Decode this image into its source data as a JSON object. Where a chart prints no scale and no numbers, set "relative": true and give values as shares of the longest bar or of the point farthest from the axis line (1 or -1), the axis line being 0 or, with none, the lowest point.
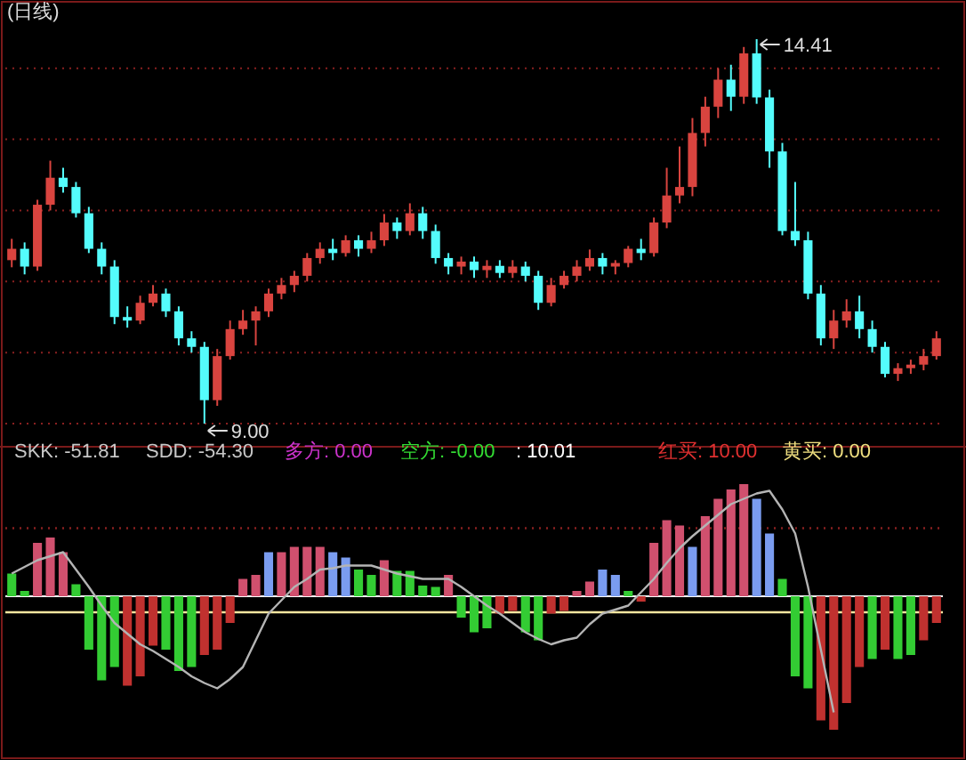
{
  "chart_data": [
    {
      "type": "candlestick",
      "title": "(日线)",
      "categories": [
        null,
        null,
        null,
        null,
        null,
        null,
        null,
        null,
        null,
        null,
        null,
        null,
        null,
        null,
        null,
        null,
        null,
        null,
        null,
        null,
        null,
        null,
        null,
        null,
        null,
        null,
        null,
        null,
        null,
        null,
        null,
        null,
        null,
        null,
        null,
        null,
        null,
        null,
        null,
        null,
        null,
        null,
        null,
        null,
        null,
        null,
        null,
        null,
        null,
        null,
        null,
        null,
        null,
        null,
        null,
        null,
        null,
        null,
        null,
        null,
        null,
        null,
        null,
        null,
        null,
        null,
        null,
        null,
        null,
        null,
        null,
        null,
        null
      ],
      "ohlc": [
        [
          11.3,
          11.6,
          11.2,
          11.46
        ],
        [
          11.46,
          11.55,
          11.1,
          11.21
        ],
        [
          11.21,
          12.15,
          11.15,
          12.08
        ],
        [
          12.08,
          12.7,
          12.0,
          12.46
        ],
        [
          12.46,
          12.6,
          12.25,
          12.33
        ],
        [
          12.33,
          12.4,
          11.9,
          11.96
        ],
        [
          11.96,
          12.05,
          11.4,
          11.46
        ],
        [
          11.46,
          11.55,
          11.1,
          11.21
        ],
        [
          11.21,
          11.3,
          10.4,
          10.5
        ],
        [
          10.5,
          10.65,
          10.35,
          10.45
        ],
        [
          10.45,
          10.8,
          10.4,
          10.7
        ],
        [
          10.7,
          10.95,
          10.65,
          10.83
        ],
        [
          10.83,
          10.9,
          10.5,
          10.58
        ],
        [
          10.58,
          10.65,
          10.1,
          10.2
        ],
        [
          10.2,
          10.3,
          10.0,
          10.08
        ],
        [
          10.08,
          10.15,
          9.0,
          9.33
        ],
        [
          9.33,
          10.05,
          9.25,
          9.95
        ],
        [
          9.95,
          10.45,
          9.9,
          10.33
        ],
        [
          10.33,
          10.6,
          10.25,
          10.45
        ],
        [
          10.45,
          10.65,
          10.1,
          10.58
        ],
        [
          10.58,
          10.9,
          10.5,
          10.83
        ],
        [
          10.83,
          11.05,
          10.75,
          10.95
        ],
        [
          10.95,
          11.15,
          10.85,
          11.08
        ],
        [
          11.08,
          11.4,
          11.0,
          11.33
        ],
        [
          11.33,
          11.55,
          11.25,
          11.46
        ],
        [
          11.46,
          11.6,
          11.3,
          11.4
        ],
        [
          11.4,
          11.65,
          11.35,
          11.58
        ],
        [
          11.58,
          11.65,
          11.35,
          11.46
        ],
        [
          11.46,
          11.7,
          11.4,
          11.58
        ],
        [
          11.58,
          11.95,
          11.5,
          11.83
        ],
        [
          11.83,
          11.9,
          11.6,
          11.71
        ],
        [
          11.71,
          12.1,
          11.65,
          11.96
        ],
        [
          11.96,
          12.05,
          11.6,
          11.71
        ],
        [
          11.71,
          11.8,
          11.25,
          11.33
        ],
        [
          11.33,
          11.4,
          11.1,
          11.21
        ],
        [
          11.21,
          11.35,
          11.1,
          11.28
        ],
        [
          11.28,
          11.35,
          11.05,
          11.16
        ],
        [
          11.16,
          11.3,
          11.05,
          11.22
        ],
        [
          11.22,
          11.3,
          11.05,
          11.12
        ],
        [
          11.12,
          11.3,
          11.05,
          11.21
        ],
        [
          11.21,
          11.28,
          11.0,
          11.08
        ],
        [
          11.08,
          11.15,
          10.6,
          10.7
        ],
        [
          10.7,
          11.05,
          10.65,
          10.95
        ],
        [
          10.95,
          11.15,
          10.9,
          11.08
        ],
        [
          11.08,
          11.3,
          11.0,
          11.21
        ],
        [
          11.21,
          11.45,
          11.15,
          11.33
        ],
        [
          11.33,
          11.4,
          11.1,
          11.21
        ],
        [
          11.21,
          11.3,
          11.1,
          11.26
        ],
        [
          11.26,
          11.5,
          11.2,
          11.46
        ],
        [
          11.46,
          11.6,
          11.3,
          11.4
        ],
        [
          11.4,
          11.9,
          11.35,
          11.83
        ],
        [
          11.83,
          12.6,
          11.75,
          12.21
        ],
        [
          12.21,
          12.9,
          12.1,
          12.33
        ],
        [
          12.33,
          13.3,
          12.2,
          13.09
        ],
        [
          13.09,
          13.6,
          12.9,
          13.46
        ],
        [
          13.46,
          14.0,
          13.3,
          13.84
        ],
        [
          13.84,
          14.05,
          13.4,
          13.6
        ],
        [
          13.6,
          14.3,
          13.5,
          14.21
        ],
        [
          14.21,
          14.41,
          13.5,
          13.59
        ],
        [
          13.59,
          13.7,
          12.6,
          12.83
        ],
        [
          12.83,
          12.95,
          11.65,
          11.71
        ],
        [
          11.71,
          12.4,
          11.5,
          11.58
        ],
        [
          11.58,
          11.7,
          10.75,
          10.83
        ],
        [
          10.83,
          10.95,
          10.1,
          10.2
        ],
        [
          10.2,
          10.6,
          10.05,
          10.45
        ],
        [
          10.45,
          10.75,
          10.35,
          10.58
        ],
        [
          10.58,
          10.8,
          10.2,
          10.33
        ],
        [
          10.33,
          10.45,
          10.0,
          10.08
        ],
        [
          10.08,
          10.15,
          9.65,
          9.7
        ],
        [
          9.7,
          9.85,
          9.6,
          9.78
        ],
        [
          9.78,
          9.9,
          9.7,
          9.83
        ],
        [
          9.83,
          10.05,
          9.75,
          9.95
        ],
        [
          9.95,
          10.3,
          9.9,
          10.2
        ]
      ],
      "yticks": [
        {
          "value": 9,
          "label": null
        },
        {
          "value": 10,
          "label": null
        },
        {
          "value": 11,
          "label": null
        },
        {
          "value": 12,
          "label": null
        },
        {
          "value": 13,
          "label": null
        },
        {
          "value": 14,
          "label": null
        }
      ],
      "grid": "y",
      "annotations": [
        "14.41",
        "9.00"
      ]
    },
    {
      "type": "bar",
      "relative": true,
      "categories": [
        null,
        null,
        null,
        null,
        null,
        null,
        null,
        null,
        null,
        null,
        null,
        null,
        null,
        null,
        null,
        null,
        null,
        null,
        null,
        null,
        null,
        null,
        null,
        null,
        null,
        null,
        null,
        null,
        null,
        null,
        null,
        null,
        null,
        null,
        null,
        null,
        null,
        null,
        null,
        null,
        null,
        null,
        null,
        null,
        null,
        null,
        null,
        null,
        null,
        null,
        null,
        null,
        null,
        null,
        null,
        null,
        null,
        null,
        null,
        null,
        null,
        null,
        null,
        null,
        null,
        null,
        null,
        null,
        null,
        null,
        null,
        null,
        null
      ],
      "series": [
        {
          "type": "bar",
          "values": [
            0.17,
            0.04,
            0.4,
            0.44,
            0.33,
            0.09,
            -0.4,
            -0.63,
            -0.53,
            -0.67,
            -0.6,
            -0.37,
            -0.4,
            -0.56,
            -0.53,
            -0.44,
            -0.4,
            -0.2,
            0.13,
            0.16,
            0.33,
            0.33,
            0.37,
            0.37,
            0.37,
            0.33,
            0.29,
            0.2,
            0.16,
            0.27,
            0.19,
            0.19,
            0.08,
            0.07,
            0.16,
            -0.16,
            -0.27,
            -0.24,
            -0.13,
            -0.11,
            -0.27,
            -0.33,
            -0.13,
            -0.11,
            0.04,
            0.11,
            0.2,
            0.16,
            0.04,
            -0.04,
            0.4,
            0.57,
            0.53,
            0.37,
            0.6,
            0.73,
            0.8,
            0.84,
            0.73,
            0.47,
            0.13,
            -0.6,
            -0.69,
            -0.93,
            -1,
            -0.8,
            -0.53,
            -0.47,
            -0.4,
            -0.47,
            -0.44,
            -0.33,
            -0.2
          ],
          "colors": [
            "#33cc33",
            "#33cc33",
            "#d0506e",
            "#d0506e",
            "#d0506e",
            "#33cc33",
            "#33cc33",
            "#33cc33",
            "#33cc33",
            "#c0312f",
            "#c0312f",
            "#c0312f",
            "#33cc33",
            "#33cc33",
            "#33cc33",
            "#c0312f",
            "#c0312f",
            "#c0312f",
            "#d0506e",
            "#d0506e",
            "#7a9cf0",
            "#d0506e",
            "#d0506e",
            "#d0506e",
            "#d0506e",
            "#7a9cf0",
            "#7a9cf0",
            "#33cc33",
            "#33cc33",
            "#d0506e",
            "#33cc33",
            "#33cc33",
            "#33cc33",
            "#33cc33",
            "#d0506e",
            "#33cc33",
            "#33cc33",
            "#33cc33",
            "#c0312f",
            "#c0312f",
            "#33cc33",
            "#33cc33",
            "#c0312f",
            "#c0312f",
            "#d0506e",
            "#d0506e",
            "#7a9cf0",
            "#7a9cf0",
            "#33cc33",
            "#c0312f",
            "#d0506e",
            "#d0506e",
            "#d0506e",
            "#7a9cf0",
            "#d0506e",
            "#d0506e",
            "#d0506e",
            "#d0506e",
            "#7a9cf0",
            "#7a9cf0",
            "#33cc33",
            "#33cc33",
            "#33cc33",
            "#c0312f",
            "#c0312f",
            "#c0312f",
            "#c0312f",
            "#33cc33",
            "#c0312f",
            "#33cc33",
            "#33cc33",
            "#c0312f",
            "#c0312f"
          ]
        },
        {
          "type": "line",
          "color": "#b4b4b4",
          "values": [
            0.17,
            0.22,
            0.27,
            0.3,
            0.33,
            0.2,
            0.07,
            -0.07,
            -0.2,
            -0.28,
            -0.36,
            -0.41,
            -0.47,
            -0.53,
            -0.6,
            -0.65,
            -0.69,
            -0.62,
            -0.53,
            -0.33,
            -0.13,
            -0.03,
            0.07,
            0.13,
            0.2,
            0.21,
            0.23,
            0.23,
            0.23,
            0.2,
            0.17,
            0.15,
            0.13,
            0.13,
            0.13,
            0.07,
            0,
            -0.07,
            -0.13,
            -0.2,
            -0.27,
            -0.32,
            -0.36,
            -0.33,
            -0.31,
            -0.21,
            -0.13,
            -0.1,
            -0.07,
            0.03,
            0.13,
            0.25,
            0.36,
            0.45,
            0.53,
            0.61,
            0.69,
            0.73,
            0.77,
            0.79,
            0.65,
            0.47,
            0.07,
            -0.4,
            -0.87,
            null,
            null,
            null,
            null,
            null,
            null,
            null,
            null
          ]
        }
      ],
      "ref_lines": [
        {
          "axis": "y",
          "value": -0.12,
          "color": "#f5e6a0"
        },
        {
          "axis": "y",
          "value": 0.51,
          "color": "#8a2020",
          "line_style": "dotted"
        }
      ],
      "annotations": [
        "SKK: -51.81",
        "SDD: -54.30",
        "多方: 0.00",
        "空方: -0.00",
        ": 10.01",
        "红买: 10.00",
        "黄买: 0.00"
      ]
    }
  ]
}
